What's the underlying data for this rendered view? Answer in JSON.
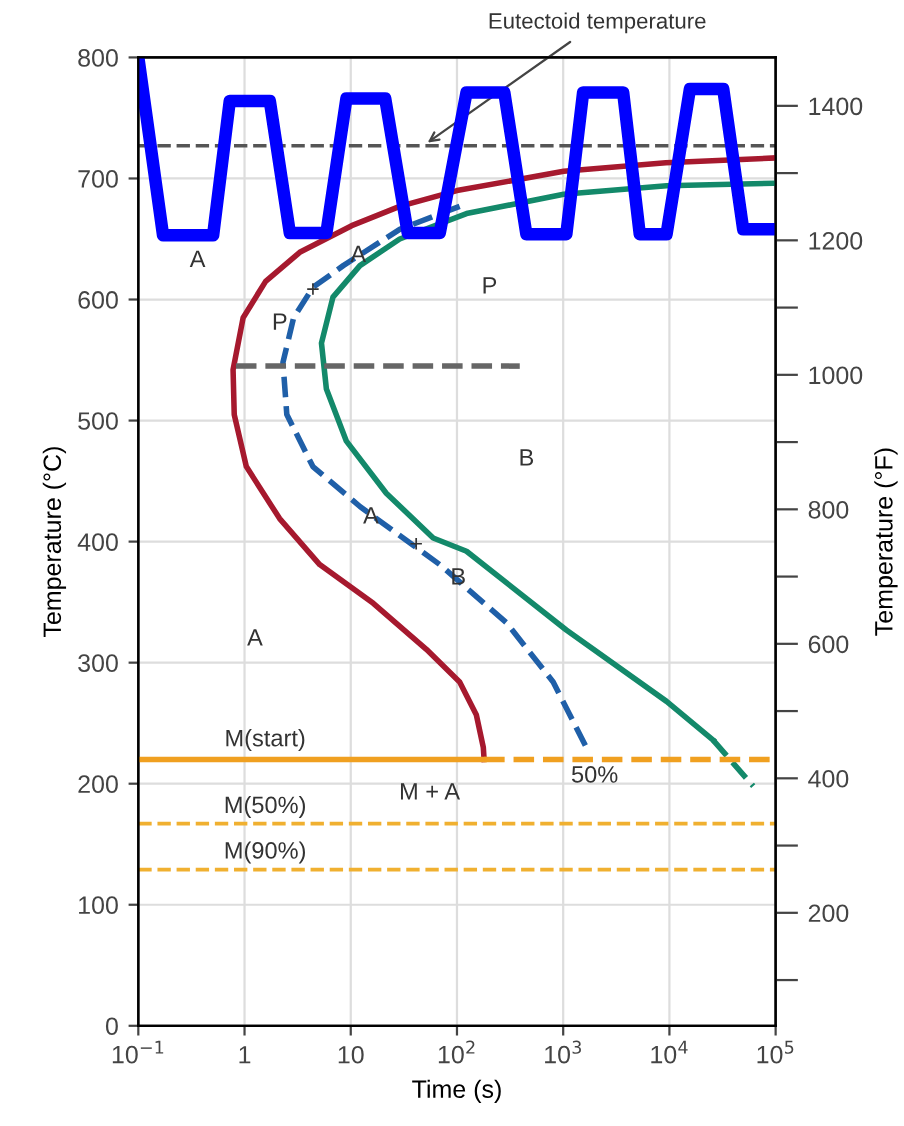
{
  "chart_data": {
    "type": "line",
    "xlabel": "Time (s)",
    "ylabel": "Temperature (°C)",
    "y2label": "Temperature (°F)",
    "log": "x",
    "xlim": [
      0.1,
      100000
    ],
    "xticks": [
      {
        "value": 0.1,
        "label": "10$^{−1}$"
      },
      1,
      10,
      {
        "value": 100,
        "label": "10$^{2}$"
      },
      {
        "value": 1000,
        "label": "10$^{3}$"
      },
      {
        "value": 10000,
        "label": "10$^{4}$"
      },
      {
        "value": 100000,
        "label": "10$^{5}$"
      }
    ],
    "ylim": [
      0,
      800
    ],
    "yticks": [
      0,
      100,
      200,
      300,
      400,
      500,
      600,
      700,
      800
    ],
    "y2lim": [
      32,
      1472
    ],
    "y2ticks": [
      {
        "value": 100,
        "label": null
      },
      200,
      {
        "value": 300,
        "label": null
      },
      400,
      {
        "value": 500,
        "label": null
      },
      600,
      {
        "value": 700,
        "label": null
      },
      800,
      {
        "value": 900,
        "label": null
      },
      1000,
      {
        "value": 1100,
        "label": null
      },
      1200,
      {
        "value": 1300,
        "label": null
      },
      1400
    ],
    "grid": true,
    "marker": "none",
    "series": [
      {
        "color": "#a6192e",
        "line_style": "solid",
        "x": [
          100000,
          9250,
          1010,
          100,
          28.9,
          10.2,
          3.31,
          1.58,
          0.97,
          0.78,
          0.8,
          1.04,
          2.14,
          5.1,
          16.3,
          51.5,
          106,
          152,
          177,
          180
        ],
        "values": [
          717,
          713,
          706,
          690,
          677,
          661,
          639,
          615,
          585,
          542,
          505,
          462,
          419,
          381,
          349,
          311,
          284,
          257,
          230,
          220
        ]
      },
      {
        "color": "#1f5fa8",
        "line_style": "dashed",
        "x": [
          106,
          28.9,
          8.5,
          4.4,
          2.9,
          2.3,
          2.5,
          4.4,
          12.2,
          38.7,
          68.9,
          292,
          805,
          1650
        ],
        "values": [
          677,
          658,
          628,
          610,
          585,
          548,
          505,
          462,
          429,
          397,
          381,
          333,
          284,
          230
        ]
      },
      {
        "color": "#13896a",
        "line_style": "solid",
        "x": [
          95000,
          9400,
          1010,
          123,
          28.9,
          12.2,
          6.8,
          5.3,
          5.9,
          9.1,
          21.6,
          59.7,
          123,
          1070,
          9400,
          25800
        ],
        "values": [
          696,
          694,
          687,
          671,
          650,
          628,
          602,
          564,
          526,
          483,
          440,
          403,
          392,
          327,
          268,
          236
        ]
      },
      {
        "color": "#13896a",
        "line_style": "dashed",
        "x": [
          25800,
          61500
        ],
        "values": [
          236,
          198
        ]
      },
      {
        "color": "#f0a020",
        "line_style": "solid",
        "x": [
          0.1,
          180
        ],
        "values": [
          220,
          220
        ]
      },
      {
        "color": "#f0a020",
        "line_style": "dashed",
        "x": [
          180,
          100000
        ],
        "values": [
          220,
          220
        ]
      },
      {
        "color": "#666666",
        "line_style": "dashed",
        "x": [
          0.83,
          390
        ],
        "values": [
          545,
          545
        ]
      },
      {
        "color": "#0000ff",
        "line_style": "solid",
        "x": [
          0.1,
          0.171,
          0.506,
          0.726,
          1.73,
          2.67,
          5.9,
          9.1,
          21.1,
          34.4,
          68.9,
          123,
          279,
          450,
          1070,
          1540,
          3670,
          5260,
          9400,
          15600,
          32100,
          49500,
          100000
        ],
        "values": [
          800,
          653,
          653,
          764,
          764,
          655,
          655,
          766,
          766,
          655,
          655,
          771,
          771,
          654,
          654,
          771,
          771,
          654,
          654,
          774,
          774,
          658,
          658
        ]
      }
    ],
    "ref_lines": [
      {
        "axis": "y",
        "value": 727,
        "color": "#555555",
        "line_style": "dashed"
      },
      {
        "axis": "y",
        "value": 167,
        "color": "#f0b030",
        "line_style": "dashed"
      },
      {
        "axis": "y",
        "value": 129,
        "color": "#f0b030",
        "line_style": "dashed"
      }
    ],
    "annotations": [
      {
        "text": "Eutectoid temperature",
        "x": 48,
        "y": 727
      },
      "A",
      "A",
      "+",
      "P",
      "P",
      "B",
      "A",
      "+",
      "B",
      "A",
      "M + A",
      "50%",
      "M(start)",
      "M(50%)",
      "M(90%)"
    ]
  }
}
